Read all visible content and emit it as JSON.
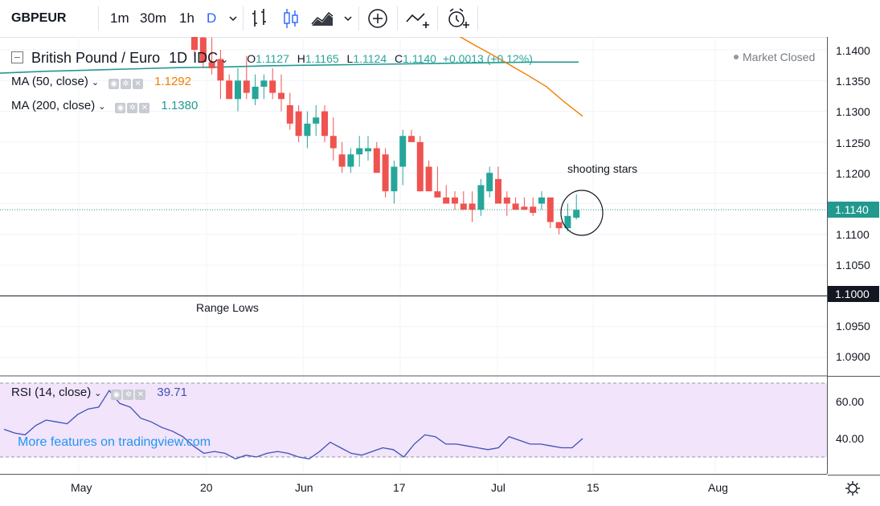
{
  "toolbar": {
    "symbol": "GBPEUR",
    "intervals": [
      "1m",
      "30m",
      "1h",
      "D"
    ]
  },
  "legend": {
    "title": "British Pound / Euro",
    "interval": "1D",
    "source": "IDC",
    "open_label": "O",
    "open": "1.1127",
    "high_label": "H",
    "high": "1.1165",
    "low_label": "L",
    "low": "1.1124",
    "close_label": "C",
    "close": "1.1140",
    "change": "+0.0013 (+0.12%)",
    "market_status": "Market Closed",
    "ma50_label": "MA (50, close)",
    "ma50_value": "1.1292",
    "ma200_label": "MA (200, close)",
    "ma200_value": "1.1380"
  },
  "rsi": {
    "label": "RSI (14, close)",
    "value": "39.71",
    "promo": "More features on tradingview.com"
  },
  "annotations": {
    "shooting_stars": "shooting stars",
    "range_lows": "Range Lows"
  },
  "price_axis": {
    "ticks": [
      "1.1400",
      "1.1350",
      "1.1300",
      "1.1250",
      "1.1200",
      "1.1150",
      "1.1100",
      "1.1050",
      "1.1000",
      "1.0950",
      "1.0900"
    ],
    "current": "1.1140",
    "hline": "1.1000",
    "rsi_ticks": [
      "60.00",
      "40.00"
    ]
  },
  "time_axis": {
    "labels": [
      "May",
      "20",
      "Jun",
      "17",
      "Jul",
      "15",
      "Aug"
    ]
  },
  "colors": {
    "up": "#26a69a",
    "down": "#ef5350",
    "ma50": "#f57c00",
    "ma200": "#22998f",
    "rsi": "#3f51b5",
    "rsi_band": "#f1e4fb"
  },
  "chart_data": {
    "type": "candlestick",
    "title": "British Pound / Euro",
    "y_range": [
      1.086,
      1.142
    ],
    "candles": [
      {
        "o": 1.144,
        "h": 1.145,
        "l": 1.139,
        "c": 1.14
      },
      {
        "o": 1.142,
        "h": 1.144,
        "l": 1.137,
        "c": 1.138
      },
      {
        "o": 1.138,
        "h": 1.142,
        "l": 1.136,
        "c": 1.137
      },
      {
        "o": 1.1385,
        "h": 1.14,
        "l": 1.132,
        "c": 1.135
      },
      {
        "o": 1.135,
        "h": 1.136,
        "l": 1.132,
        "c": 1.132
      },
      {
        "o": 1.132,
        "h": 1.137,
        "l": 1.13,
        "c": 1.135
      },
      {
        "o": 1.135,
        "h": 1.139,
        "l": 1.132,
        "c": 1.133
      },
      {
        "o": 1.132,
        "h": 1.136,
        "l": 1.131,
        "c": 1.134
      },
      {
        "o": 1.134,
        "h": 1.136,
        "l": 1.132,
        "c": 1.135
      },
      {
        "o": 1.135,
        "h": 1.137,
        "l": 1.132,
        "c": 1.133
      },
      {
        "o": 1.133,
        "h": 1.136,
        "l": 1.13,
        "c": 1.132
      },
      {
        "o": 1.131,
        "h": 1.133,
        "l": 1.127,
        "c": 1.128
      },
      {
        "o": 1.13,
        "h": 1.131,
        "l": 1.125,
        "c": 1.126
      },
      {
        "o": 1.126,
        "h": 1.13,
        "l": 1.124,
        "c": 1.128
      },
      {
        "o": 1.128,
        "h": 1.131,
        "l": 1.126,
        "c": 1.129
      },
      {
        "o": 1.13,
        "h": 1.131,
        "l": 1.125,
        "c": 1.126
      },
      {
        "o": 1.126,
        "h": 1.129,
        "l": 1.122,
        "c": 1.124
      },
      {
        "o": 1.123,
        "h": 1.125,
        "l": 1.12,
        "c": 1.121
      },
      {
        "o": 1.121,
        "h": 1.124,
        "l": 1.12,
        "c": 1.123
      },
      {
        "o": 1.123,
        "h": 1.126,
        "l": 1.121,
        "c": 1.124
      },
      {
        "o": 1.1235,
        "h": 1.126,
        "l": 1.122,
        "c": 1.124
      },
      {
        "o": 1.124,
        "h": 1.125,
        "l": 1.12,
        "c": 1.12
      },
      {
        "o": 1.123,
        "h": 1.124,
        "l": 1.116,
        "c": 1.117
      },
      {
        "o": 1.117,
        "h": 1.122,
        "l": 1.115,
        "c": 1.121
      },
      {
        "o": 1.121,
        "h": 1.127,
        "l": 1.118,
        "c": 1.126
      },
      {
        "o": 1.126,
        "h": 1.127,
        "l": 1.125,
        "c": 1.125
      },
      {
        "o": 1.125,
        "h": 1.126,
        "l": 1.117,
        "c": 1.117
      },
      {
        "o": 1.121,
        "h": 1.122,
        "l": 1.117,
        "c": 1.117
      },
      {
        "o": 1.117,
        "h": 1.121,
        "l": 1.116,
        "c": 1.116
      },
      {
        "o": 1.116,
        "h": 1.118,
        "l": 1.115,
        "c": 1.115
      },
      {
        "o": 1.116,
        "h": 1.117,
        "l": 1.114,
        "c": 1.115
      },
      {
        "o": 1.115,
        "h": 1.117,
        "l": 1.114,
        "c": 1.114
      },
      {
        "o": 1.115,
        "h": 1.117,
        "l": 1.112,
        "c": 1.114
      },
      {
        "o": 1.114,
        "h": 1.119,
        "l": 1.113,
        "c": 1.118
      },
      {
        "o": 1.117,
        "h": 1.121,
        "l": 1.116,
        "c": 1.12
      },
      {
        "o": 1.119,
        "h": 1.121,
        "l": 1.115,
        "c": 1.115
      },
      {
        "o": 1.116,
        "h": 1.117,
        "l": 1.113,
        "c": 1.115
      },
      {
        "o": 1.115,
        "h": 1.116,
        "l": 1.114,
        "c": 1.114
      },
      {
        "o": 1.1145,
        "h": 1.116,
        "l": 1.114,
        "c": 1.114
      },
      {
        "o": 1.1145,
        "h": 1.116,
        "l": 1.113,
        "c": 1.1135
      },
      {
        "o": 1.115,
        "h": 1.117,
        "l": 1.114,
        "c": 1.116
      },
      {
        "o": 1.116,
        "h": 1.116,
        "l": 1.111,
        "c": 1.112
      },
      {
        "o": 1.112,
        "h": 1.112,
        "l": 1.11,
        "c": 1.111
      },
      {
        "o": 1.111,
        "h": 1.115,
        "l": 1.1105,
        "c": 1.113
      },
      {
        "o": 1.1127,
        "h": 1.1165,
        "l": 1.1124,
        "c": 1.114
      }
    ],
    "ma200": [
      1.1362,
      1.1365,
      1.1367,
      1.1369,
      1.1371,
      1.1372,
      1.1374,
      1.1375,
      1.1376,
      1.1377,
      1.1378,
      1.1379,
      1.138,
      1.138
    ],
    "ma50": [
      1.144,
      1.1425,
      1.1408,
      1.1392,
      1.1375,
      1.1358,
      1.134,
      1.1315,
      1.1292
    ],
    "rsi_values": [
      45,
      43,
      42,
      47,
      50,
      49,
      48,
      53,
      56,
      57,
      66,
      59,
      57,
      51,
      49,
      46,
      44,
      41,
      36,
      32,
      33,
      32,
      29,
      31,
      30,
      32,
      33,
      32,
      30,
      29,
      33,
      38,
      35,
      32,
      31,
      33,
      35,
      34,
      30,
      37,
      42,
      41,
      37,
      37,
      36,
      35,
      34,
      35,
      41,
      39,
      37,
      37,
      36,
      35,
      35,
      40
    ],
    "rsi_range": [
      20,
      72
    ],
    "rsi_levels": [
      70,
      30
    ]
  }
}
